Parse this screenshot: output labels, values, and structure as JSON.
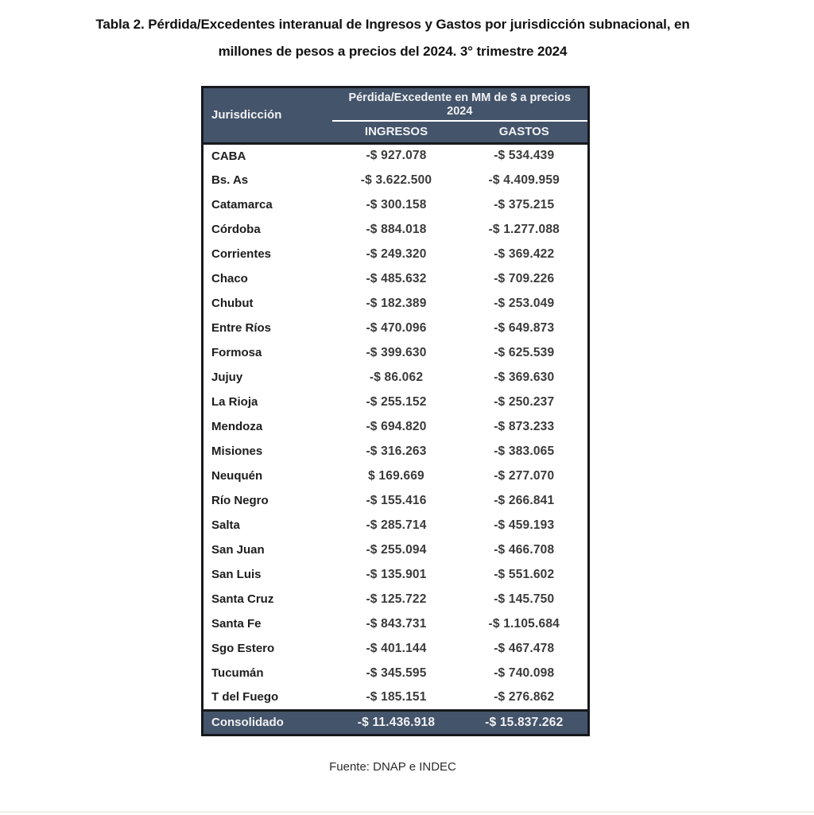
{
  "page": {
    "title_line1": "Tabla 2. Pérdida/Excedentes interanual de Ingresos y Gastos por jurisdicción subnacional, en",
    "title_line2": "millones de pesos a precios del 2024. 3° trimestre 2024",
    "source": "Fuente: DNAP e INDEC"
  },
  "table": {
    "col_jurisdiccion": "Jurisdicción",
    "col_group": "Pérdida/Excedente en MM de $ a precios 2024",
    "col_ingresos": "INGRESOS",
    "col_gastos": "GASTOS",
    "rows": [
      {
        "label": "CABA",
        "ingresos": "-$ 927.078",
        "gastos": "-$ 534.439"
      },
      {
        "label": "Bs. As",
        "ingresos": "-$ 3.622.500",
        "gastos": "-$ 4.409.959"
      },
      {
        "label": "Catamarca",
        "ingresos": "-$ 300.158",
        "gastos": "-$ 375.215"
      },
      {
        "label": "Córdoba",
        "ingresos": "-$ 884.018",
        "gastos": "-$ 1.277.088"
      },
      {
        "label": "Corrientes",
        "ingresos": "-$ 249.320",
        "gastos": "-$ 369.422"
      },
      {
        "label": "Chaco",
        "ingresos": "-$ 485.632",
        "gastos": "-$ 709.226"
      },
      {
        "label": "Chubut",
        "ingresos": "-$ 182.389",
        "gastos": "-$ 253.049"
      },
      {
        "label": "Entre Ríos",
        "ingresos": "-$ 470.096",
        "gastos": "-$ 649.873"
      },
      {
        "label": "Formosa",
        "ingresos": "-$ 399.630",
        "gastos": "-$ 625.539"
      },
      {
        "label": "Jujuy",
        "ingresos": "-$ 86.062",
        "gastos": "-$ 369.630"
      },
      {
        "label": "La Rioja",
        "ingresos": "-$ 255.152",
        "gastos": "-$ 250.237"
      },
      {
        "label": "Mendoza",
        "ingresos": "-$ 694.820",
        "gastos": "-$ 873.233"
      },
      {
        "label": "Misiones",
        "ingresos": "-$ 316.263",
        "gastos": "-$ 383.065"
      },
      {
        "label": "Neuquén",
        "ingresos": "$ 169.669",
        "gastos": "-$ 277.070"
      },
      {
        "label": "Río Negro",
        "ingresos": "-$ 155.416",
        "gastos": "-$ 266.841"
      },
      {
        "label": "Salta",
        "ingresos": "-$ 285.714",
        "gastos": "-$ 459.193"
      },
      {
        "label": "San Juan",
        "ingresos": "-$ 255.094",
        "gastos": "-$ 466.708"
      },
      {
        "label": "San Luis",
        "ingresos": "-$ 135.901",
        "gastos": "-$ 551.602"
      },
      {
        "label": "Santa Cruz",
        "ingresos": "-$ 125.722",
        "gastos": "-$ 145.750"
      },
      {
        "label": "Santa Fe",
        "ingresos": "-$ 843.731",
        "gastos": "-$ 1.105.684"
      },
      {
        "label": "Sgo Estero",
        "ingresos": "-$ 401.144",
        "gastos": "-$ 467.478"
      },
      {
        "label": "Tucumán",
        "ingresos": "-$ 345.595",
        "gastos": "-$ 740.098"
      },
      {
        "label": "T del Fuego",
        "ingresos": "-$ 185.151",
        "gastos": "-$ 276.862"
      }
    ],
    "footer": {
      "label": "Consolidado",
      "ingresos": "-$ 11.436.918",
      "gastos": "-$ 15.837.262"
    }
  },
  "colors": {
    "header_bg": "#44546A",
    "border_dark": "#17191D",
    "header_text": "#F1F2F4"
  }
}
